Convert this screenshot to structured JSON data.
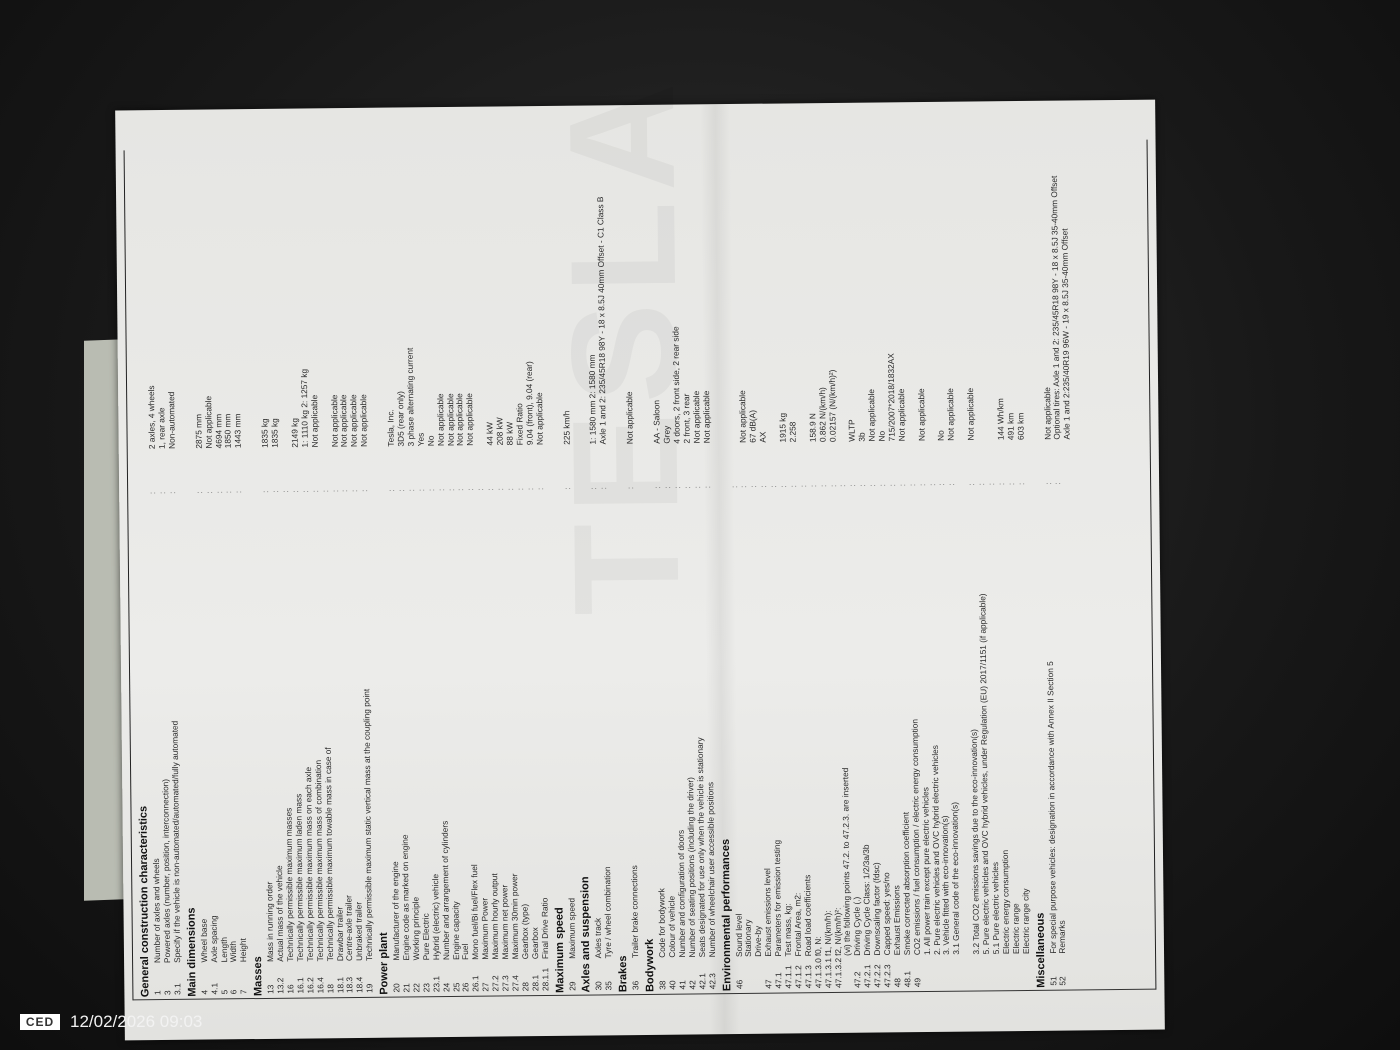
{
  "watermark_logo": "TESLA",
  "stamp": {
    "logo": "CED",
    "timestamp": "12/02/2026 09:03"
  },
  "rows": [
    {
      "h": "General construction characteristics"
    },
    {
      "n": "1",
      "l": "Number of axles and wheels",
      "v": "2 axles, 4 wheels"
    },
    {
      "n": "3",
      "l": "Powered axles (number, position, interconnection)",
      "v": "1, rear axle"
    },
    {
      "n": "3.1",
      "l": "Specify if the vehicle is non-automated/automated/fully automated",
      "v": "Non-automated"
    },
    {
      "h": "Main dimensions"
    },
    {
      "n": "4",
      "l": "Wheel base",
      "v": "2875 mm"
    },
    {
      "n": "4.1",
      "l": "Axle spacing",
      "v": "Not applicable"
    },
    {
      "n": "5",
      "l": "Length",
      "v": "4694 mm"
    },
    {
      "n": "6",
      "l": "Width",
      "v": "1850 mm"
    },
    {
      "n": "7",
      "l": "Height",
      "v": "1443 mm"
    },
    {
      "h": "Masses"
    },
    {
      "n": "13",
      "l": "Mass in running order",
      "v": "1835 kg"
    },
    {
      "n": "13.2",
      "l": "Actual mass of the vehicle",
      "v": "1835 kg"
    },
    {
      "n": "16",
      "l": "Technically permissible maximum masses",
      "v": ""
    },
    {
      "n": "16.1",
      "l": "Technically permissible maximum laden mass",
      "v": "2149 kg"
    },
    {
      "n": "16.2",
      "l": "Technically permissible maximum mass on each axle",
      "v": "1: 1110 kg  2: 1257 kg"
    },
    {
      "n": "16.4",
      "l": "Technically permissible maximum mass of combination",
      "v": "Not applicable"
    },
    {
      "n": "18",
      "l": "Technically permissible maximum towable mass in case of",
      "v": ""
    },
    {
      "n": "18.1",
      "l": "Drawbar trailer",
      "v": "Not applicable"
    },
    {
      "n": "18.3",
      "l": "Centre-axle trailer",
      "v": "Not applicable"
    },
    {
      "n": "18.4",
      "l": "Unbraked trailer",
      "v": "Not applicable"
    },
    {
      "n": "19",
      "l": "Technically permissible maximum static vertical mass at the coupling point",
      "v": "Not applicable"
    },
    {
      "h": "Power plant"
    },
    {
      "n": "20",
      "l": "Manufacturer of the engine",
      "v": "Tesla, Inc."
    },
    {
      "n": "21",
      "l": "Engine code as marked on engine",
      "v": "3D5 (rear only)"
    },
    {
      "n": "22",
      "l": "Working principle",
      "v": "3 phase alternating current"
    },
    {
      "n": "23",
      "l": "Pure Electric",
      "v": "Yes"
    },
    {
      "n": "23.1",
      "l": "Hybrid (electric) vehicle",
      "v": "No"
    },
    {
      "n": "24",
      "l": "Number and arrangement of cylinders",
      "v": "Not applicable"
    },
    {
      "n": "25",
      "l": "Engine capacity",
      "v": "Not applicable"
    },
    {
      "n": "26",
      "l": "Fuel",
      "v": "Not applicable"
    },
    {
      "n": "26.1",
      "l": "Mono fuel/Bi fuel/Flex fuel",
      "v": "Not applicable"
    },
    {
      "n": "27",
      "l": "Maximum Power",
      "v": ""
    },
    {
      "n": "27.2",
      "l": "Maximum hourly output",
      "v": "44 kW"
    },
    {
      "n": "27.3",
      "l": "Maximum net power",
      "v": "208 kW"
    },
    {
      "n": "27.4",
      "l": "Maximum 30min power",
      "v": "88 kW"
    },
    {
      "n": "28",
      "l": "Gearbox (type)",
      "v": "Fixed Ratio"
    },
    {
      "n": "28.1",
      "l": "Gearbox",
      "v": "9.04 (front), 9.04 (rear)"
    },
    {
      "n": "28.1.1",
      "l": "Final Drive Ratio",
      "v": "Not applicable"
    },
    {
      "h": "Maximum speed"
    },
    {
      "n": "29",
      "l": "Maximum speed",
      "v": "225 km/h"
    },
    {
      "h": "Axles and suspension"
    },
    {
      "n": "30",
      "l": "Axles track",
      "v": "1: 1580 mm 2: 1580 mm"
    },
    {
      "n": "35",
      "l": "Tyre / wheel combination",
      "v": "Axle 1 and 2: 235/45R18 98Y - 18 x 8.5J 40mm Offset - C1 Class B"
    },
    {
      "h": "Brakes"
    },
    {
      "n": "36",
      "l": "Trailer brake connections",
      "v": "Not applicable"
    },
    {
      "h": "Bodywork"
    },
    {
      "n": "38",
      "l": "Code for bodywork",
      "v": "AA - Saloon"
    },
    {
      "n": "40",
      "l": "Colour of vehicle",
      "v": "Grey"
    },
    {
      "n": "41",
      "l": "Number and configuration of doors",
      "v": "4 doors, 2 front side, 2 rear side"
    },
    {
      "n": "42",
      "l": "Number of seating positions (including the driver)",
      "v": "2 front, 3 rear"
    },
    {
      "n": "42.1",
      "l": "Seats designated for use only when the vehicle is stationary",
      "v": "Not applicable"
    },
    {
      "n": "42.3",
      "l": "Number of wheelchair user accessible positions",
      "v": "Not applicable"
    },
    {
      "h": "Environmental performances"
    },
    {
      "n": "46",
      "l": "Sound level",
      "v": ""
    },
    {
      "n": "",
      "l": "Stationary",
      "v": "Not applicable"
    },
    {
      "n": "",
      "l": "Drive-by",
      "v": "67 dB(A)"
    },
    {
      "n": "47",
      "l": "Exhaust emissions level",
      "v": "AX"
    },
    {
      "n": "47.1",
      "l": "Parameters for emission testing",
      "v": ""
    },
    {
      "n": "47.1.1",
      "l": "Test mass, kg:",
      "v": "1915 kg"
    },
    {
      "n": "47.1.2",
      "l": "Frontal Area, m2:",
      "v": "2.258"
    },
    {
      "n": "47.1.3",
      "l": "Road load coefficients",
      "v": ""
    },
    {
      "n": "47.1.3.0",
      "l": "f0, N:",
      "v": "158.9 N"
    },
    {
      "n": "47.1.3.1",
      "l": "f1, N/(km/h):",
      "v": "0.862 N/(km/h)"
    },
    {
      "n": "47.1.3.2",
      "l": "f2, N/(km/h)²:",
      "v": "0.02157 (N/(km/h)²)"
    },
    {
      "n": "",
      "l": "(vi) the following points 47.2. to 47.2.3. are inserted",
      "v": ""
    },
    {
      "n": "47.2",
      "l": "Driving Cycle (.)",
      "v": "WLTP"
    },
    {
      "n": "47.2.1",
      "l": "Driving Cycle Class: 1/2/3a/3b",
      "v": "3b"
    },
    {
      "n": "47.2.2",
      "l": "Downscaling factor (fdsc)",
      "v": "Not applicable"
    },
    {
      "n": "47.2.3",
      "l": "Capped speed: yes/no",
      "v": "No"
    },
    {
      "n": "48",
      "l": "Exhaust Emissions",
      "v": "715/2007*2018/1832AX"
    },
    {
      "n": "48.1",
      "l": "Smoke corrected absorption coefficient",
      "v": "Not applicable"
    },
    {
      "n": "49",
      "l": "CO2 emissions / fuel consumption / electric energy consumption",
      "v": ""
    },
    {
      "n": "",
      "l": "1. All power train except pure electric vehicles",
      "v": "Not applicable"
    },
    {
      "n": "",
      "l": "2. Pure electric vehicles and OVC hybrid electric vehicles",
      "v": ""
    },
    {
      "n": "",
      "l": "3. Vehicle fitted with eco-innovation(s)",
      "v": "No"
    },
    {
      "n": "",
      "l": "3.1 General code of the eco-innovation(s)",
      "v": "Not applicable"
    },
    {
      "n": "",
      "l": "",
      "v": ""
    },
    {
      "n": "",
      "l": "3.2 Total CO2 emissions savings due to the eco-innovation(s)",
      "v": "Not applicable"
    },
    {
      "n": "",
      "l": "5. Pure electric vehicles and OVC hybrid vehicles, under Regulation (EU) 2017/1151 (if applicable)",
      "v": ""
    },
    {
      "n": "",
      "l": "5.1 Pure electric vehicles",
      "v": ""
    },
    {
      "n": "",
      "l": "Electric energy consumption",
      "v": "144 Wh/km"
    },
    {
      "n": "",
      "l": "Electric range",
      "v": "491 km"
    },
    {
      "n": "",
      "l": "Electric range city",
      "v": "603 km"
    },
    {
      "h": "Miscellaneous"
    },
    {
      "n": "51",
      "l": "For special purpose vehicles: designation in accordance with Annex II Section 5",
      "v": "Not applicable"
    },
    {
      "n": "52",
      "l": "Remarks",
      "v": "Optional tires: Axle 1 and 2: 235/45R18 98Y - 18 x 8.5J 35-40mm Offset"
    },
    {
      "n": "",
      "l": "",
      "v": "Axle 1 and 2:235/40R19 96W - 19 x 8.5J 35-40mm Offset",
      "nocolon": true
    }
  ]
}
